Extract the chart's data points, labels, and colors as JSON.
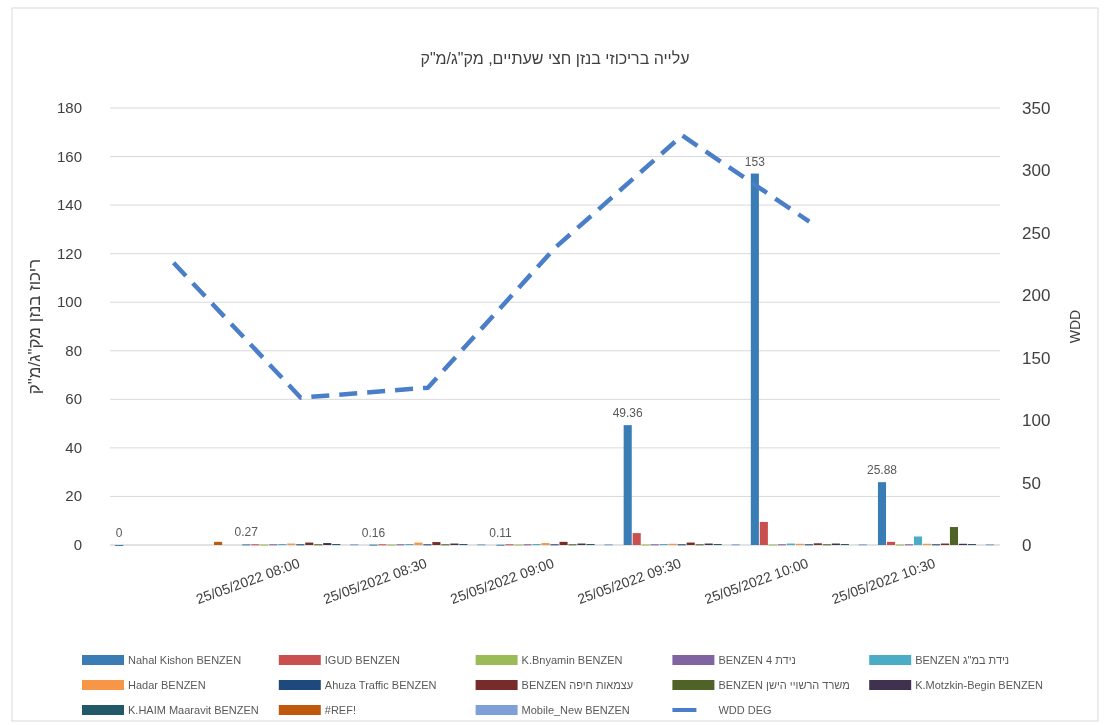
{
  "chart_data": {
    "type": "bar",
    "title": "עלייה בריכוזי בנזן חצי שעתיים, מק\"ג/מ\"ק",
    "ylabel": "ריכוז בנזן מק\"ג/מ\"ק",
    "y2label": "WDD",
    "categories": [
      null,
      "25/05/2022 08:00",
      "25/05/2022 08:30",
      "25/05/2022 09:00",
      "25/05/2022 09:30",
      "25/05/2022 10:00",
      "25/05/2022 10:30"
    ],
    "ylim": [
      0,
      180
    ],
    "yticks": [
      0,
      20,
      40,
      60,
      80,
      100,
      120,
      140,
      160,
      180
    ],
    "y2lim": [
      0,
      350
    ],
    "y2ticks": [
      0,
      50,
      100,
      150,
      200,
      250,
      300,
      350
    ],
    "grid": "y",
    "legend": "bottom",
    "series": [
      {
        "name": "Nahal Kishon BENZEN",
        "color": "#3a7db5",
        "values": [
          0,
          0.27,
          0.16,
          0.11,
          49.36,
          153,
          25.88
        ],
        "value_labels": [
          "0",
          "0.27",
          "0.16",
          "0.11",
          "49.36",
          "153",
          "25.88"
        ]
      },
      {
        "name": "IGUD BENZEN",
        "color": "#c9504f",
        "values": [
          null,
          0.3,
          0.3,
          0.3,
          4.9,
          9.5,
          1.3
        ]
      },
      {
        "name": "K.Bnyamin BENZEN",
        "color": "#9bbb59",
        "values": [
          null,
          0.2,
          0.2,
          0.2,
          0.2,
          0.2,
          0.2
        ]
      },
      {
        "name": "BENZEN נידת 4",
        "color": "#8064a2",
        "values": [
          null,
          0.3,
          0.3,
          0.3,
          0.3,
          0.3,
          0.3
        ]
      },
      {
        "name": "BENZEN נידת במ\"ג",
        "color": "#4bacc6",
        "values": [
          null,
          0.4,
          0.4,
          0.4,
          0.4,
          0.6,
          3.5
        ]
      },
      {
        "name": "Hadar BENZEN",
        "color": "#f79646",
        "values": [
          null,
          0.6,
          1,
          0.8,
          0.5,
          0.5,
          0.5
        ]
      },
      {
        "name": "Ahuza Traffic BENZEN",
        "color": "#1f497d",
        "values": [
          null,
          0.3,
          0.3,
          0.3,
          0.3,
          0.3,
          0.3
        ]
      },
      {
        "name": "BENZEN עצמאות חיפה",
        "color": "#772c2a",
        "values": [
          null,
          1,
          1.2,
          1.3,
          1,
          0.7,
          0.6
        ]
      },
      {
        "name": "BENZEN משרד הרשויי הישן",
        "color": "#4f6228",
        "values": [
          null,
          0.3,
          0.3,
          0.3,
          0.3,
          0.3,
          7.4
        ]
      },
      {
        "name": "K.Motzkin-Begin BENZEN",
        "color": "#403151",
        "values": [
          null,
          0.8,
          0.6,
          0.6,
          0.6,
          0.6,
          0.5
        ]
      },
      {
        "name": "K.HAIM Maaravit BENZEN",
        "color": "#215968",
        "values": [
          null,
          0.4,
          0.4,
          0.4,
          0.4,
          0.4,
          0.4
        ]
      },
      {
        "name": "#REF!",
        "color": "#c0580e",
        "values": [
          1.3,
          null,
          null,
          null,
          null,
          null,
          null
        ]
      },
      {
        "name": "Mobile_New BENZEN",
        "color": "#7fa0d6",
        "values": [
          null,
          0.3,
          0.3,
          0.3,
          0.3,
          0.3,
          0.3
        ]
      },
      {
        "name": "WDD DEG",
        "type": "line",
        "axis": "y2",
        "color": "#4a7ec8",
        "line_style": "dashed",
        "values": [
          226,
          118,
          126,
          238,
          328,
          259,
          null
        ]
      }
    ]
  }
}
